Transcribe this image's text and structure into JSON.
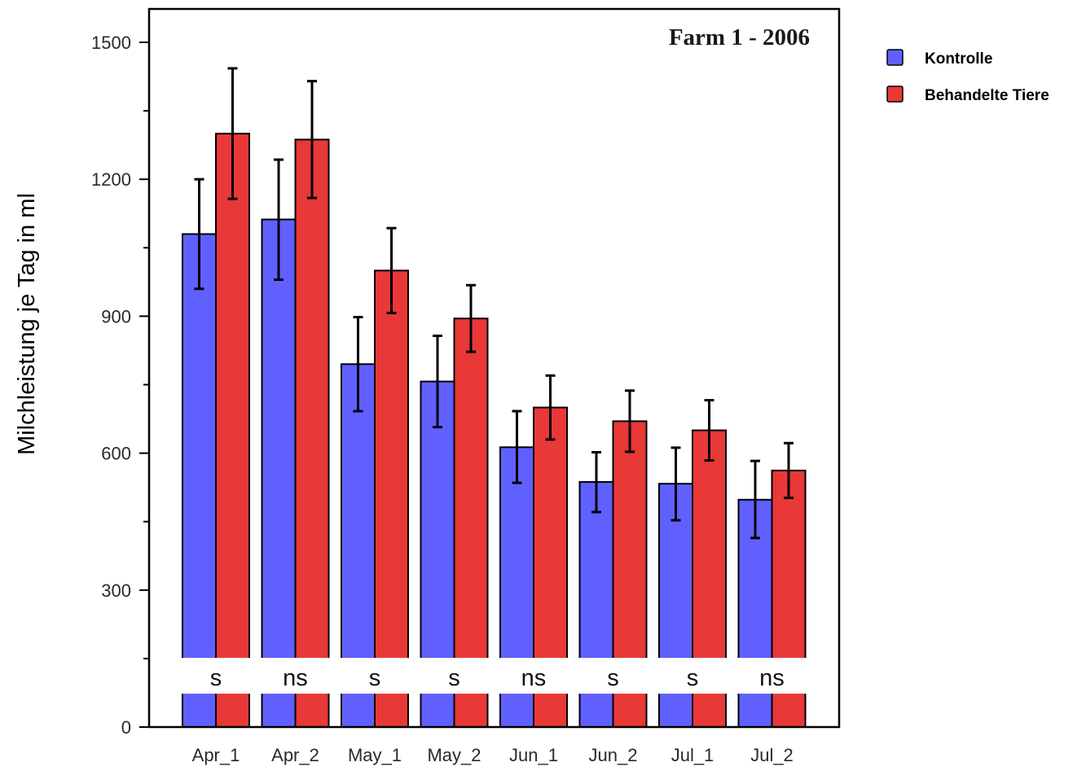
{
  "chart_data": {
    "type": "bar",
    "title": "Farm 1 - 2006",
    "xlabel": "",
    "ylabel": "Milchleistung je Tag in ml",
    "ylim": [
      0,
      1500
    ],
    "yticks": [
      0,
      300,
      600,
      900,
      1200,
      1500
    ],
    "categories": [
      "Apr_1",
      "Apr_2",
      "May_1",
      "May_2",
      "Jun_1",
      "Jun_2",
      "Jul_1",
      "Jul_2"
    ],
    "series": [
      {
        "name": "Kontrolle",
        "color": "#6060ff",
        "values": [
          1080,
          1112,
          795,
          757,
          613,
          537,
          533,
          498
        ],
        "err_upper": [
          1200,
          1243,
          898,
          857,
          692,
          602,
          612,
          583
        ],
        "err_lower": [
          960,
          980,
          692,
          657,
          535,
          471,
          453,
          414
        ]
      },
      {
        "name": "Behandelte Tiere",
        "color": "#e83838",
        "values": [
          1300,
          1287,
          1000,
          895,
          700,
          670,
          650,
          562
        ],
        "err_upper": [
          1443,
          1415,
          1093,
          968,
          770,
          737,
          716,
          622
        ],
        "err_lower": [
          1157,
          1159,
          907,
          822,
          630,
          603,
          584,
          502
        ]
      }
    ],
    "significance": [
      "s",
      "ns",
      "s",
      "s",
      "ns",
      "s",
      "s",
      "ns"
    ],
    "legend": "top-right outside plot",
    "grid": false
  }
}
